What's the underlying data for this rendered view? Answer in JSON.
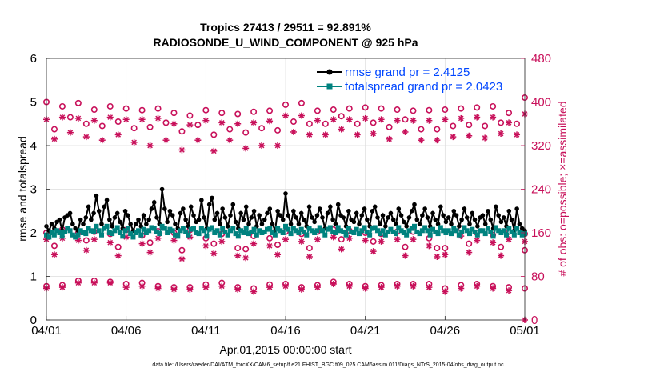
{
  "chart_data": {
    "type": "line",
    "title_line1": "Tropics 27413 / 29511 = 92.891%",
    "title_line2": "RADIOSONDE_U_WIND_COMPONENT @ 925 hPa",
    "xlabel": "Apr.01,2015 00:00:00 start",
    "ylabel_left": "rmse and totalspread",
    "ylabel_right": "# of obs: o=possible; ×=assimilated",
    "x_range_days": [
      0,
      30
    ],
    "x_ticks": [
      {
        "day": 0,
        "label": "04/01"
      },
      {
        "day": 5,
        "label": "04/06"
      },
      {
        "day": 10,
        "label": "04/11"
      },
      {
        "day": 15,
        "label": "04/16"
      },
      {
        "day": 20,
        "label": "04/21"
      },
      {
        "day": 25,
        "label": "04/26"
      },
      {
        "day": 30,
        "label": "05/01"
      }
    ],
    "ylim_left": [
      0,
      6
    ],
    "y_ticks_left": [
      "0",
      "1",
      "2",
      "3",
      "4",
      "5",
      "6"
    ],
    "ylim_right": [
      0,
      480
    ],
    "y_ticks_right": [
      "0",
      "80",
      "160",
      "240",
      "320",
      "400",
      "480"
    ],
    "legend": [
      {
        "label": "rmse grand pr = 2.4125",
        "color": "#000000"
      },
      {
        "label": "totalspread grand pr = 2.0423",
        "color": "#00827f"
      }
    ],
    "series": [
      {
        "name": "rmse",
        "axis": "left",
        "color": "#000000",
        "values": [
          2.15,
          2.05,
          2.2,
          2.1,
          2.25,
          2.3,
          2.05,
          2.35,
          2.4,
          2.45,
          2.2,
          2.1,
          2.05,
          2.3,
          2.2,
          2.35,
          2.6,
          2.3,
          2.45,
          2.85,
          2.5,
          2.2,
          2.6,
          2.75,
          2.3,
          2.15,
          2.35,
          2.45,
          2.25,
          2.1,
          2.5,
          2.4,
          2.2,
          2.05,
          2.2,
          2.3,
          2.15,
          2.4,
          2.2,
          2.3,
          2.55,
          2.7,
          2.35,
          2.2,
          3.0,
          2.55,
          2.25,
          2.5,
          2.4,
          2.2,
          2.1,
          2.45,
          2.55,
          2.3,
          2.15,
          2.6,
          2.4,
          2.25,
          2.3,
          2.75,
          2.35,
          2.1,
          2.65,
          2.8,
          2.3,
          2.45,
          2.2,
          2.55,
          2.35,
          2.15,
          2.4,
          2.65,
          2.25,
          2.1,
          2.45,
          2.3,
          2.6,
          2.2,
          2.35,
          2.5,
          2.15,
          2.4,
          2.2,
          2.3,
          2.45,
          2.55,
          2.2,
          2.05,
          2.5,
          2.4,
          2.3,
          2.9,
          2.4,
          2.2,
          2.5,
          2.35,
          2.2,
          2.45,
          2.3,
          2.15,
          2.6,
          2.35,
          2.25,
          2.4,
          2.55,
          2.35,
          2.1,
          2.45,
          2.6,
          2.3,
          2.2,
          2.65,
          2.4,
          2.35,
          2.15,
          2.5,
          2.3,
          2.25,
          2.45,
          2.2,
          2.4,
          2.55,
          2.3,
          2.15,
          2.5,
          2.6,
          2.35,
          2.2,
          2.4,
          2.15,
          2.35,
          2.45,
          2.3,
          2.2,
          2.55,
          2.4,
          2.25,
          2.15,
          2.35,
          2.5,
          2.65,
          2.3,
          2.2,
          2.4,
          2.55,
          2.35,
          2.15,
          2.45,
          2.3,
          2.2,
          2.6,
          2.4,
          2.25,
          2.35,
          2.2,
          2.5,
          2.4,
          2.15,
          2.3,
          2.55,
          2.35,
          2.2,
          2.45,
          2.3,
          2.15,
          2.35,
          2.4,
          2.2,
          2.5,
          2.3,
          2.1,
          2.6,
          2.4,
          2.25,
          2.35,
          2.15,
          2.5,
          2.3,
          2.05,
          2.55,
          2.2,
          2.1,
          2.05
        ]
      },
      {
        "name": "totalspread",
        "axis": "left",
        "color": "#00827f",
        "values": [
          1.95,
          1.9,
          2.0,
          1.95,
          2.05,
          2.0,
          1.92,
          2.02,
          2.1,
          2.05,
          1.95,
          1.9,
          1.95,
          2.05,
          2.0,
          1.98,
          2.1,
          2.05,
          2.02,
          2.15,
          2.05,
          1.95,
          2.1,
          2.15,
          2.0,
          1.98,
          2.05,
          2.12,
          2.0,
          1.92,
          2.05,
          2.1,
          1.98,
          1.9,
          2.0,
          2.05,
          1.95,
          2.08,
          2.0,
          2.05,
          2.12,
          2.1,
          2.02,
          1.98,
          2.15,
          2.1,
          2.0,
          2.08,
          2.05,
          1.95,
          1.92,
          2.05,
          2.1,
          2.02,
          1.95,
          2.08,
          2.1,
          2.0,
          1.98,
          2.1,
          2.05,
          1.92,
          2.08,
          2.12,
          2.0,
          2.05,
          1.95,
          2.1,
          2.02,
          1.95,
          2.05,
          2.1,
          1.98,
          1.92,
          2.05,
          2.0,
          2.1,
          1.98,
          2.02,
          2.08,
          1.95,
          2.05,
          2.0,
          2.02,
          2.08,
          2.1,
          2.0,
          1.95,
          2.1,
          2.05,
          2.0,
          2.15,
          2.08,
          1.98,
          2.1,
          2.05,
          2.0,
          2.08,
          2.02,
          1.95,
          2.1,
          2.05,
          2.0,
          2.05,
          2.12,
          2.05,
          1.95,
          2.08,
          2.12,
          2.02,
          2.0,
          2.12,
          2.05,
          2.02,
          1.95,
          2.1,
          2.02,
          2.0,
          2.08,
          1.98,
          2.05,
          2.12,
          2.02,
          1.95,
          2.1,
          2.12,
          2.05,
          1.98,
          2.05,
          1.95,
          2.02,
          2.08,
          2.02,
          1.98,
          2.12,
          2.05,
          2.0,
          1.95,
          2.05,
          2.1,
          2.15,
          2.02,
          1.98,
          2.05,
          2.12,
          2.05,
          1.95,
          2.08,
          2.02,
          1.98,
          2.12,
          2.05,
          2.0,
          2.05,
          1.98,
          2.1,
          2.05,
          1.95,
          2.02,
          2.12,
          2.05,
          1.98,
          2.08,
          2.02,
          1.95,
          2.05,
          2.05,
          1.98,
          2.1,
          2.02,
          1.92,
          2.12,
          2.05,
          2.0,
          2.05,
          1.95,
          2.1,
          2.02,
          1.95,
          2.1,
          2.0,
          1.95,
          1.98
        ]
      },
      {
        "name": "obs_possible_00Z",
        "axis": "right",
        "marker": "o",
        "color": "#c8105a",
        "days": [
          0,
          1,
          2,
          3,
          4,
          5,
          6,
          7,
          8,
          9,
          10,
          11,
          12,
          13,
          14,
          15,
          16,
          17,
          18,
          19,
          20,
          21,
          22,
          23,
          24,
          25,
          26,
          27,
          28,
          29,
          30
        ],
        "values": [
          400,
          392,
          398,
          386,
          392,
          388,
          385,
          388,
          380,
          375,
          385,
          380,
          378,
          382,
          384,
          395,
          398,
          384,
          386,
          388,
          390,
          388,
          386,
          384,
          385,
          386,
          388,
          390,
          392,
          380,
          408
        ]
      },
      {
        "name": "obs_assimilated_00Z",
        "axis": "right",
        "marker": "*",
        "color": "#c8105a",
        "days": [
          0,
          1,
          2,
          3,
          4,
          5,
          6,
          7,
          8,
          9,
          10,
          11,
          12,
          13,
          14,
          15,
          16,
          17,
          18,
          19,
          20,
          21,
          22,
          23,
          24,
          25,
          26,
          27,
          28,
          29,
          30
        ],
        "values": [
          368,
          372,
          370,
          366,
          372,
          368,
          368,
          370,
          360,
          358,
          366,
          362,
          360,
          362,
          365,
          375,
          375,
          366,
          368,
          368,
          370,
          368,
          366,
          366,
          366,
          368,
          370,
          372,
          372,
          362,
          378
        ]
      },
      {
        "name": "obs_possible_12Z",
        "axis": "right",
        "marker": "o",
        "color": "#c8105a",
        "days": [
          0.5,
          1.5,
          2.5,
          3.5,
          4.5,
          5.5,
          6.5,
          7.5,
          8.5,
          9.5,
          10.5,
          11.5,
          12.5,
          13.5,
          14.5,
          15.5,
          16.5,
          17.5,
          18.5,
          19.5,
          20.5,
          21.5,
          22.5,
          23.5,
          24.5,
          25.5,
          26.5,
          27.5,
          28.5,
          29.5
        ],
        "values": [
          350,
          372,
          360,
          356,
          364,
          352,
          354,
          362,
          346,
          358,
          340,
          350,
          344,
          352,
          348,
          364,
          360,
          360,
          374,
          360,
          362,
          354,
          368,
          350,
          350,
          356,
          358,
          356,
          362,
          360
        ]
      },
      {
        "name": "obs_assimilated_12Z",
        "axis": "right",
        "marker": "*",
        "color": "#c8105a",
        "days": [
          0.5,
          1.5,
          2.5,
          3.5,
          4.5,
          5.5,
          6.5,
          7.5,
          8.5,
          9.5,
          10.5,
          11.5,
          12.5,
          13.5,
          14.5,
          15.5,
          16.5,
          17.5,
          18.5,
          19.5,
          20.5,
          21.5,
          22.5,
          23.5,
          24.5,
          25.5,
          26.5,
          27.5,
          28.5,
          29.5
        ],
        "values": [
          332,
          344,
          336,
          330,
          340,
          326,
          320,
          330,
          312,
          330,
          310,
          330,
          315,
          320,
          320,
          345,
          340,
          340,
          350,
          340,
          342,
          332,
          345,
          330,
          330,
          336,
          338,
          334,
          342,
          340
        ]
      },
      {
        "name": "obs_possible_06Z",
        "axis": "right",
        "marker": "o",
        "color": "#c8105a",
        "days": [
          0,
          1,
          2,
          3,
          4,
          5,
          6,
          7,
          8,
          9,
          10,
          11,
          12,
          13,
          14,
          15,
          16,
          17,
          18,
          19,
          20,
          21,
          22,
          23,
          24,
          25,
          26,
          27,
          28,
          29,
          30
        ],
        "values": [
          160,
          166,
          160,
          162,
          158,
          165,
          155,
          163,
          160,
          165,
          150,
          158,
          132,
          154,
          150,
          162,
          158,
          162,
          166,
          164,
          160,
          158,
          162,
          162,
          150,
          132,
          168,
          160,
          156,
          162,
          158
        ]
      },
      {
        "name": "obs_assimilated_06Z",
        "axis": "right",
        "marker": "*",
        "color": "#c8105a",
        "days": [
          0,
          1,
          2,
          3,
          4,
          5,
          6,
          7,
          8,
          9,
          10,
          11,
          12,
          13,
          14,
          15,
          16,
          17,
          18,
          19,
          20,
          21,
          22,
          23,
          24,
          25,
          26,
          27,
          28,
          29,
          30
        ],
        "values": [
          148,
          150,
          146,
          148,
          142,
          152,
          140,
          150,
          146,
          152,
          136,
          144,
          118,
          140,
          136,
          148,
          144,
          148,
          152,
          150,
          146,
          144,
          148,
          148,
          136,
          120,
          154,
          146,
          142,
          148,
          144
        ]
      },
      {
        "name": "obs_possible_18Z",
        "axis": "right",
        "marker": "o",
        "color": "#c8105a",
        "days": [
          0.5,
          2.5,
          4.5,
          6.5,
          8.5,
          10.5,
          12.5,
          14.5,
          16.5,
          18.5,
          20.5,
          22.5,
          24.5,
          26.5,
          28.5,
          30
        ],
        "values": [
          136,
          146,
          134,
          142,
          128,
          140,
          130,
          138,
          132,
          148,
          144,
          134,
          132,
          140,
          134,
          128
        ]
      },
      {
        "name": "obs_assimilated_18Z",
        "axis": "right",
        "marker": "*",
        "color": "#c8105a",
        "days": [
          0.5,
          2.5,
          4.5,
          6.5,
          8.5,
          10.5,
          12.5,
          14.5,
          16.5,
          18.5,
          20.5,
          22.5,
          24.5,
          26.5,
          28.5
        ],
        "values": [
          120,
          128,
          118,
          124,
          112,
          122,
          114,
          120,
          116,
          130,
          126,
          118,
          116,
          124,
          118
        ]
      },
      {
        "name": "obs_possible_low",
        "axis": "right",
        "marker": "o",
        "color": "#c8105a",
        "days": [
          0,
          1,
          2,
          3,
          4,
          5,
          6,
          7,
          8,
          9,
          10,
          11,
          12,
          13,
          14,
          15,
          16,
          17,
          18,
          19,
          20,
          21,
          22,
          23,
          24,
          25,
          26,
          27,
          28,
          29,
          30
        ],
        "values": [
          62,
          64,
          72,
          72,
          70,
          66,
          68,
          62,
          60,
          60,
          65,
          68,
          60,
          58,
          65,
          66,
          60,
          64,
          70,
          66,
          62,
          64,
          66,
          66,
          66,
          58,
          64,
          66,
          62,
          60,
          58
        ]
      },
      {
        "name": "obs_assimilated_low",
        "axis": "right",
        "marker": "*",
        "color": "#c8105a",
        "days": [
          0,
          1,
          2,
          3,
          4,
          5,
          6,
          7,
          8,
          9,
          10,
          11,
          12,
          13,
          14,
          15,
          16,
          17,
          18,
          19,
          20,
          21,
          22,
          23,
          24,
          25,
          26,
          27,
          28,
          29,
          30
        ],
        "values": [
          58,
          60,
          68,
          68,
          68,
          60,
          62,
          58,
          56,
          56,
          60,
          62,
          56,
          52,
          60,
          62,
          56,
          60,
          66,
          62,
          58,
          60,
          62,
          62,
          60,
          52,
          58,
          62,
          58,
          54,
          0
        ]
      }
    ]
  },
  "footnote": "data file: /Users/raeder/DAI/ATM_forcXX/CAM6_setup/f.e21.FHIST_BGC.f09_025.CAM6assim.011/Diags_NTrS_2015-04/obs_diag_output.nc",
  "colors": {
    "obs": "#c8105a",
    "rmse": "#000000",
    "spread": "#00827f",
    "legend_text": "#0046ff"
  }
}
